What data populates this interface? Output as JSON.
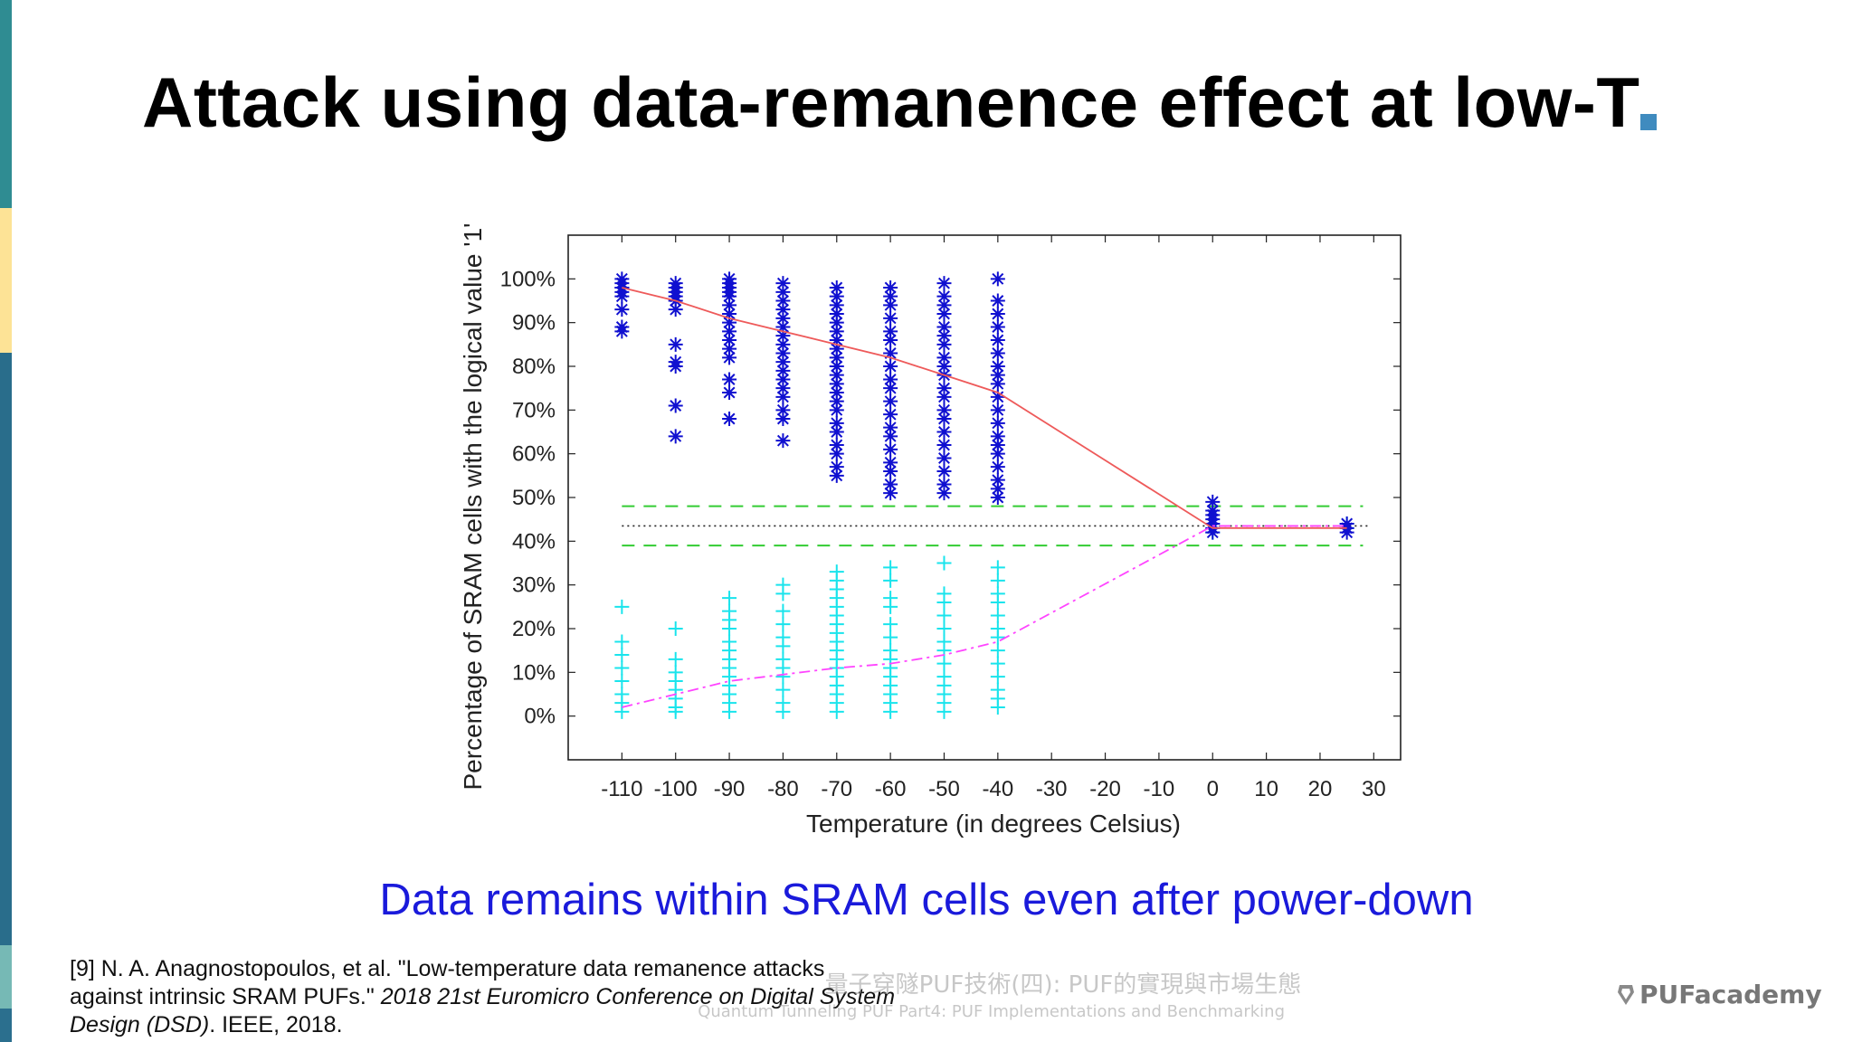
{
  "slide": {
    "title": "Attack using data-remanence effect at low-T",
    "caption": "Data remains within SRAM cells even after power-down",
    "citation": {
      "part1": "[9] N. A. Anagnostopoulos, et al. \"Low-temperature data remanence attacks against intrinsic SRAM PUFs.\" ",
      "venue": "2018 21st Euromicro Conference on Digital System Design (DSD)",
      "part2": ". IEEE, 2018."
    },
    "watermark": {
      "line1": "量子穿隧PUF技術(四): PUF的實現與市場生態",
      "line2": "Quantum Tunneling PUF Part4: PUF Implementations and Benchmarking"
    },
    "logo_text": "PUFacademy"
  },
  "colors": {
    "caption": "#1a1adb",
    "sidebar": [
      "#2f8c92",
      "#fde396",
      "#296d8b",
      "#76b9b5",
      "#2b6f8e"
    ],
    "title_square": "#3f8bbf",
    "ones_marker": "#1010d0",
    "zeros_marker": "#19e4ec",
    "ones_mean_line": "#ee5a5a",
    "zeros_mean_line": "#ff44ff",
    "band_line": "#33cc33",
    "center_line": "#222222"
  },
  "chart_data": {
    "type": "scatter",
    "xlabel": "Temperature (in degrees Celsius)",
    "ylabel": "Percentage of SRAM cells with the logical value '1'",
    "xlim": [
      -120,
      35
    ],
    "ylim": [
      -10,
      110
    ],
    "x_ticks": [
      -110,
      -100,
      -90,
      -80,
      -70,
      -60,
      -50,
      -40,
      -30,
      -20,
      -10,
      0,
      10,
      20,
      30
    ],
    "y_ticks": [
      0,
      10,
      20,
      30,
      40,
      50,
      60,
      70,
      80,
      90,
      100
    ],
    "y_tick_labels": [
      "0%",
      "10%",
      "20%",
      "30%",
      "40%",
      "50%",
      "60%",
      "70%",
      "80%",
      "90%",
      "100%"
    ],
    "grid": false,
    "series": [
      {
        "marker": "asterisk",
        "color": "#1010d0",
        "points": [
          {
            "x": -110,
            "y": [
              88,
              89,
              93,
              96,
              97,
              98,
              98,
              99,
              100
            ]
          },
          {
            "x": -100,
            "y": [
              64,
              71,
              80,
              81,
              85,
              93,
              95,
              96,
              97,
              98,
              99
            ]
          },
          {
            "x": -90,
            "y": [
              68,
              74,
              77,
              82,
              84,
              86,
              88,
              90,
              92,
              94,
              96,
              97,
              98,
              99,
              100
            ]
          },
          {
            "x": -80,
            "y": [
              63,
              68,
              70,
              73,
              75,
              77,
              79,
              81,
              83,
              85,
              87,
              89,
              91,
              93,
              95,
              97,
              99
            ]
          },
          {
            "x": -70,
            "y": [
              55,
              57,
              60,
              62,
              65,
              67,
              70,
              72,
              74,
              76,
              78,
              80,
              82,
              84,
              86,
              88,
              90,
              92,
              94,
              96,
              98
            ]
          },
          {
            "x": -60,
            "y": [
              51,
              53,
              56,
              58,
              61,
              64,
              66,
              69,
              72,
              75,
              77,
              80,
              83,
              86,
              88,
              91,
              94,
              96,
              98
            ]
          },
          {
            "x": -50,
            "y": [
              51,
              53,
              56,
              59,
              62,
              65,
              68,
              70,
              73,
              75,
              78,
              80,
              82,
              85,
              87,
              89,
              92,
              94,
              96,
              99
            ]
          },
          {
            "x": -40,
            "y": [
              50,
              52,
              54,
              57,
              60,
              62,
              64,
              67,
              70,
              73,
              76,
              78,
              80,
              83,
              86,
              89,
              92,
              95,
              100
            ]
          },
          {
            "x": 0,
            "y": [
              42,
              43,
              44,
              45,
              46,
              47,
              49
            ]
          },
          {
            "x": 25,
            "y": [
              42,
              43,
              44
            ]
          }
        ]
      },
      {
        "marker": "plus",
        "color": "#19e4ec",
        "points": [
          {
            "x": -110,
            "y": [
              1,
              3,
              5,
              8,
              11,
              14,
              17,
              25
            ]
          },
          {
            "x": -100,
            "y": [
              1,
              2,
              4,
              6,
              8,
              10,
              13,
              20
            ]
          },
          {
            "x": -90,
            "y": [
              1,
              3,
              5,
              7,
              9,
              11,
              13,
              15,
              17,
              20,
              22,
              24,
              27
            ]
          },
          {
            "x": -80,
            "y": [
              1,
              3,
              6,
              9,
              11,
              13,
              16,
              18,
              21,
              24,
              28,
              30
            ]
          },
          {
            "x": -70,
            "y": [
              1,
              3,
              5,
              7,
              9,
              11,
              13,
              15,
              17,
              19,
              21,
              23,
              25,
              27,
              29,
              31,
              33
            ]
          },
          {
            "x": -60,
            "y": [
              1,
              3,
              5,
              7,
              9,
              11,
              13,
              15,
              18,
              21,
              25,
              27,
              31,
              34
            ]
          },
          {
            "x": -50,
            "y": [
              1,
              3,
              5,
              7,
              9,
              12,
              15,
              17,
              20,
              23,
              26,
              28,
              35
            ]
          },
          {
            "x": -40,
            "y": [
              2,
              4,
              6,
              9,
              12,
              15,
              18,
              20,
              23,
              26,
              28,
              31,
              34
            ]
          },
          {
            "x": 0,
            "y": [
              42,
              43,
              44
            ]
          },
          {
            "x": 25,
            "y": [
              43,
              44
            ]
          }
        ]
      }
    ],
    "mean_lines": [
      {
        "style": "solid",
        "color": "#ee5a5a",
        "x": [
          -110,
          -100,
          -90,
          -80,
          -70,
          -60,
          -50,
          -40,
          0,
          25
        ],
        "y": [
          98,
          95,
          91,
          88,
          85,
          82,
          78,
          74,
          43,
          43
        ]
      },
      {
        "style": "dash-dot",
        "color": "#ff44ff",
        "x": [
          -110,
          -100,
          -90,
          -80,
          -70,
          -60,
          -50,
          -40,
          0,
          25
        ],
        "y": [
          2,
          5,
          8,
          9.5,
          11,
          12,
          14,
          17,
          43.5,
          43.5
        ]
      }
    ],
    "reference_lines": [
      {
        "style": "dashed",
        "color": "#33cc33",
        "y": 48,
        "x_range": [
          -110,
          28
        ]
      },
      {
        "style": "dashed",
        "color": "#33cc33",
        "y": 39,
        "x_range": [
          -110,
          28
        ]
      },
      {
        "style": "dotted",
        "color": "#222222",
        "y": 43.5,
        "x_range": [
          -110,
          29
        ]
      }
    ]
  }
}
